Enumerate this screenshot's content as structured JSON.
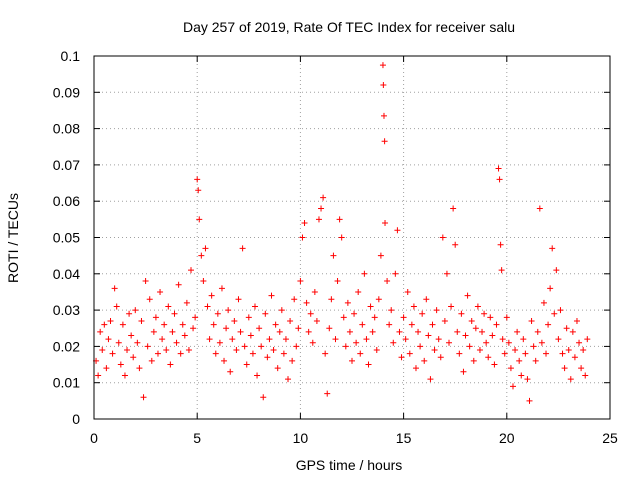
{
  "chart_data": {
    "type": "scatter",
    "title": "Day 257 of 2019, Rate Of TEC Index for receiver salu",
    "xlabel": "GPS time / hours",
    "ylabel": "ROTI / TECUs",
    "xlim": [
      0,
      25
    ],
    "ylim": [
      0,
      0.1
    ],
    "xticks": [
      0,
      5,
      10,
      15,
      20,
      25
    ],
    "yticks": [
      0,
      0.01,
      0.02,
      0.03,
      0.04,
      0.05,
      0.06,
      0.07,
      0.08,
      0.09,
      0.1
    ],
    "xtick_labels": [
      "0",
      "5",
      "10",
      "15",
      "20",
      "25"
    ],
    "ytick_labels": [
      "0",
      "0.01",
      "0.02",
      "0.03",
      "0.04",
      "0.05",
      "0.06",
      "0.07",
      "0.08",
      "0.09",
      "0.1"
    ],
    "grid": true,
    "marker": "+",
    "color": "#ff0000",
    "series": [
      {
        "name": "ROTI",
        "points": [
          [
            0.1,
            0.016
          ],
          [
            0.2,
            0.012
          ],
          [
            0.3,
            0.024
          ],
          [
            0.4,
            0.019
          ],
          [
            0.5,
            0.026
          ],
          [
            0.6,
            0.014
          ],
          [
            0.7,
            0.022
          ],
          [
            0.8,
            0.027
          ],
          [
            0.9,
            0.018
          ],
          [
            1.0,
            0.036
          ],
          [
            1.1,
            0.031
          ],
          [
            1.2,
            0.021
          ],
          [
            1.3,
            0.015
          ],
          [
            1.4,
            0.026
          ],
          [
            1.5,
            0.012
          ],
          [
            1.6,
            0.019
          ],
          [
            1.7,
            0.029
          ],
          [
            1.8,
            0.023
          ],
          [
            1.9,
            0.017
          ],
          [
            2.0,
            0.03
          ],
          [
            2.1,
            0.021
          ],
          [
            2.2,
            0.014
          ],
          [
            2.3,
            0.027
          ],
          [
            2.4,
            0.006
          ],
          [
            2.5,
            0.038
          ],
          [
            2.6,
            0.02
          ],
          [
            2.7,
            0.033
          ],
          [
            2.8,
            0.016
          ],
          [
            2.9,
            0.024
          ],
          [
            3.0,
            0.028
          ],
          [
            3.1,
            0.018
          ],
          [
            3.2,
            0.035
          ],
          [
            3.3,
            0.022
          ],
          [
            3.4,
            0.026
          ],
          [
            3.5,
            0.019
          ],
          [
            3.6,
            0.031
          ],
          [
            3.7,
            0.015
          ],
          [
            3.8,
            0.024
          ],
          [
            3.9,
            0.029
          ],
          [
            4.0,
            0.021
          ],
          [
            4.1,
            0.037
          ],
          [
            4.2,
            0.018
          ],
          [
            4.3,
            0.026
          ],
          [
            4.4,
            0.023
          ],
          [
            4.5,
            0.032
          ],
          [
            4.6,
            0.019
          ],
          [
            4.7,
            0.041
          ],
          [
            4.8,
            0.025
          ],
          [
            4.9,
            0.028
          ],
          [
            5.0,
            0.066
          ],
          [
            5.05,
            0.063
          ],
          [
            5.1,
            0.055
          ],
          [
            5.2,
            0.045
          ],
          [
            5.3,
            0.038
          ],
          [
            5.4,
            0.047
          ],
          [
            5.5,
            0.031
          ],
          [
            5.6,
            0.022
          ],
          [
            5.7,
            0.034
          ],
          [
            5.8,
            0.026
          ],
          [
            5.9,
            0.018
          ],
          [
            6.0,
            0.029
          ],
          [
            6.1,
            0.021
          ],
          [
            6.2,
            0.036
          ],
          [
            6.3,
            0.016
          ],
          [
            6.4,
            0.025
          ],
          [
            6.5,
            0.03
          ],
          [
            6.6,
            0.013
          ],
          [
            6.7,
            0.022
          ],
          [
            6.8,
            0.027
          ],
          [
            6.9,
            0.019
          ],
          [
            7.0,
            0.033
          ],
          [
            7.1,
            0.024
          ],
          [
            7.2,
            0.047
          ],
          [
            7.3,
            0.02
          ],
          [
            7.4,
            0.015
          ],
          [
            7.5,
            0.028
          ],
          [
            7.6,
            0.023
          ],
          [
            7.7,
            0.018
          ],
          [
            7.8,
            0.031
          ],
          [
            7.9,
            0.012
          ],
          [
            8.0,
            0.025
          ],
          [
            8.1,
            0.02
          ],
          [
            8.2,
            0.006
          ],
          [
            8.3,
            0.029
          ],
          [
            8.4,
            0.017
          ],
          [
            8.5,
            0.022
          ],
          [
            8.6,
            0.034
          ],
          [
            8.7,
            0.019
          ],
          [
            8.8,
            0.026
          ],
          [
            8.9,
            0.014
          ],
          [
            9.0,
            0.024
          ],
          [
            9.1,
            0.03
          ],
          [
            9.2,
            0.018
          ],
          [
            9.3,
            0.022
          ],
          [
            9.4,
            0.011
          ],
          [
            9.5,
            0.027
          ],
          [
            9.6,
            0.016
          ],
          [
            9.7,
            0.033
          ],
          [
            9.8,
            0.02
          ],
          [
            9.9,
            0.025
          ],
          [
            10.0,
            0.038
          ],
          [
            10.1,
            0.05
          ],
          [
            10.2,
            0.054
          ],
          [
            10.3,
            0.032
          ],
          [
            10.4,
            0.024
          ],
          [
            10.5,
            0.029
          ],
          [
            10.6,
            0.021
          ],
          [
            10.7,
            0.035
          ],
          [
            10.8,
            0.027
          ],
          [
            10.9,
            0.055
          ],
          [
            11.0,
            0.058
          ],
          [
            11.1,
            0.061
          ],
          [
            11.2,
            0.018
          ],
          [
            11.3,
            0.007
          ],
          [
            11.4,
            0.025
          ],
          [
            11.5,
            0.033
          ],
          [
            11.6,
            0.045
          ],
          [
            11.7,
            0.022
          ],
          [
            11.8,
            0.038
          ],
          [
            11.9,
            0.055
          ],
          [
            12.0,
            0.05
          ],
          [
            12.1,
            0.028
          ],
          [
            12.2,
            0.02
          ],
          [
            12.3,
            0.032
          ],
          [
            12.4,
            0.024
          ],
          [
            12.5,
            0.016
          ],
          [
            12.6,
            0.029
          ],
          [
            12.7,
            0.021
          ],
          [
            12.8,
            0.035
          ],
          [
            12.9,
            0.018
          ],
          [
            13.0,
            0.026
          ],
          [
            13.1,
            0.04
          ],
          [
            13.2,
            0.022
          ],
          [
            13.3,
            0.015
          ],
          [
            13.4,
            0.031
          ],
          [
            13.5,
            0.024
          ],
          [
            13.6,
            0.028
          ],
          [
            13.7,
            0.019
          ],
          [
            13.8,
            0.033
          ],
          [
            13.9,
            0.045
          ],
          [
            14.0,
            0.0975
          ],
          [
            14.02,
            0.092
          ],
          [
            14.05,
            0.0835
          ],
          [
            14.08,
            0.0765
          ],
          [
            14.1,
            0.054
          ],
          [
            14.2,
            0.038
          ],
          [
            14.3,
            0.026
          ],
          [
            14.4,
            0.03
          ],
          [
            14.5,
            0.021
          ],
          [
            14.6,
            0.04
          ],
          [
            14.7,
            0.052
          ],
          [
            14.8,
            0.024
          ],
          [
            14.9,
            0.017
          ],
          [
            15.0,
            0.028
          ],
          [
            15.1,
            0.022
          ],
          [
            15.2,
            0.035
          ],
          [
            15.3,
            0.018
          ],
          [
            15.4,
            0.026
          ],
          [
            15.5,
            0.031
          ],
          [
            15.6,
            0.014
          ],
          [
            15.7,
            0.024
          ],
          [
            15.8,
            0.02
          ],
          [
            15.9,
            0.029
          ],
          [
            16.0,
            0.016
          ],
          [
            16.1,
            0.033
          ],
          [
            16.2,
            0.023
          ],
          [
            16.3,
            0.011
          ],
          [
            16.4,
            0.026
          ],
          [
            16.5,
            0.019
          ],
          [
            16.6,
            0.03
          ],
          [
            16.7,
            0.022
          ],
          [
            16.8,
            0.017
          ],
          [
            16.9,
            0.05
          ],
          [
            17.0,
            0.027
          ],
          [
            17.1,
            0.04
          ],
          [
            17.2,
            0.021
          ],
          [
            17.3,
            0.031
          ],
          [
            17.4,
            0.058
          ],
          [
            17.5,
            0.048
          ],
          [
            17.6,
            0.024
          ],
          [
            17.7,
            0.018
          ],
          [
            17.8,
            0.029
          ],
          [
            17.9,
            0.013
          ],
          [
            18.0,
            0.023
          ],
          [
            18.1,
            0.034
          ],
          [
            18.2,
            0.02
          ],
          [
            18.3,
            0.027
          ],
          [
            18.4,
            0.016
          ],
          [
            18.5,
            0.025
          ],
          [
            18.6,
            0.031
          ],
          [
            18.7,
            0.019
          ],
          [
            18.8,
            0.024
          ],
          [
            18.9,
            0.029
          ],
          [
            19.0,
            0.021
          ],
          [
            19.1,
            0.017
          ],
          [
            19.2,
            0.028
          ],
          [
            19.3,
            0.023
          ],
          [
            19.4,
            0.015
          ],
          [
            19.5,
            0.026
          ],
          [
            19.6,
            0.069
          ],
          [
            19.65,
            0.066
          ],
          [
            19.7,
            0.048
          ],
          [
            19.75,
            0.041
          ],
          [
            19.8,
            0.022
          ],
          [
            19.9,
            0.018
          ],
          [
            20.0,
            0.028
          ],
          [
            20.1,
            0.021
          ],
          [
            20.2,
            0.014
          ],
          [
            20.3,
            0.009
          ],
          [
            20.4,
            0.019
          ],
          [
            20.5,
            0.024
          ],
          [
            20.6,
            0.016
          ],
          [
            20.7,
            0.012
          ],
          [
            20.8,
            0.022
          ],
          [
            20.9,
            0.018
          ],
          [
            21.0,
            0.011
          ],
          [
            21.1,
            0.005
          ],
          [
            21.2,
            0.027
          ],
          [
            21.3,
            0.02
          ],
          [
            21.4,
            0.016
          ],
          [
            21.5,
            0.024
          ],
          [
            21.6,
            0.058
          ],
          [
            21.7,
            0.021
          ],
          [
            21.8,
            0.032
          ],
          [
            21.9,
            0.018
          ],
          [
            22.0,
            0.026
          ],
          [
            22.1,
            0.036
          ],
          [
            22.2,
            0.047
          ],
          [
            22.3,
            0.029
          ],
          [
            22.4,
            0.041
          ],
          [
            22.5,
            0.022
          ],
          [
            22.6,
            0.03
          ],
          [
            22.7,
            0.018
          ],
          [
            22.8,
            0.014
          ],
          [
            22.9,
            0.025
          ],
          [
            23.0,
            0.019
          ],
          [
            23.1,
            0.011
          ],
          [
            23.2,
            0.024
          ],
          [
            23.3,
            0.017
          ],
          [
            23.4,
            0.027
          ],
          [
            23.5,
            0.021
          ],
          [
            23.6,
            0.014
          ],
          [
            23.7,
            0.019
          ],
          [
            23.8,
            0.012
          ],
          [
            23.9,
            0.022
          ]
        ]
      }
    ]
  }
}
